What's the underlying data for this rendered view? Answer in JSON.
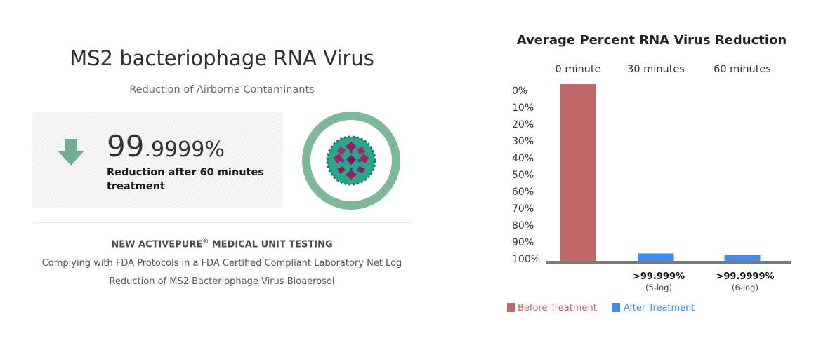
{
  "left": {
    "title": "MS2 bacteriophage RNA Virus",
    "subtitle": "Reduction of Airborne Contaminants",
    "stat_big": "99",
    "stat_small": ".9999%",
    "stat_label": "Reduction after 60 minutes treatment",
    "arrow_icon": "down-arrow-icon",
    "virus_icon": "virus-icon",
    "ring_color": "#7fb79b",
    "testing_title": "NEW ACTIVEPURE",
    "testing_title_sup": "®",
    "testing_title_rest": " MEDICAL UNIT TESTING",
    "testing_line1": "Complying with FDA Protocols in a FDA Certified Compliant Laboratory Net Log",
    "testing_line2": "Reduction of MS2 Bacteriophage Virus Bioaerosol"
  },
  "chart_data": {
    "type": "bar",
    "title": "Average Percent RNA Virus Reduction",
    "categories": [
      "0 minute",
      "30 minutes",
      "60 minutes"
    ],
    "values": [
      100,
      7,
      3
    ],
    "bar_colors": [
      "#c0676a",
      "#3d8ef0",
      "#3d8ef0"
    ],
    "y_ticks": [
      "0%",
      "10%",
      "20%",
      "30%",
      "40%",
      "50%",
      "60%",
      "70%",
      "80%",
      "90%",
      "100%"
    ],
    "ylim": [
      0,
      100
    ],
    "y_inverted": true,
    "data_labels": [
      {
        "main": "",
        "sub": ""
      },
      {
        "main": ">99.999%",
        "sub": "(5-log)"
      },
      {
        "main": ">99.9999%",
        "sub": "(6-log)"
      }
    ],
    "legend": [
      {
        "label": "Before Treatment",
        "color": "#c0676a"
      },
      {
        "label": "After Treatment",
        "color": "#3d8ef0"
      }
    ],
    "legend_position": "bottom-left",
    "grid": false
  }
}
